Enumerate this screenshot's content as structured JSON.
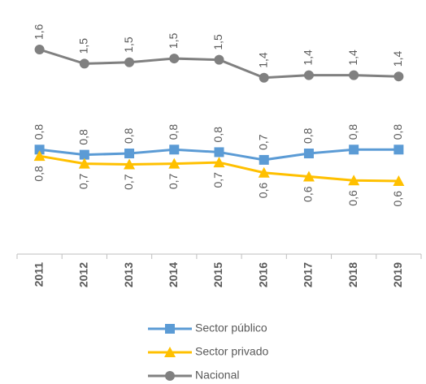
{
  "chart_data": {
    "type": "line",
    "categories": [
      "2011",
      "2012",
      "2013",
      "2014",
      "2015",
      "2016",
      "2017",
      "2018",
      "2019"
    ],
    "series": [
      {
        "name": "Sector público",
        "color": "#5b9bd5",
        "marker": "square",
        "values": [
          0.8,
          0.76,
          0.77,
          0.8,
          0.78,
          0.72,
          0.77,
          0.8,
          0.8
        ],
        "value_labels": [
          "0,8",
          "0,8",
          "0,8",
          "0,8",
          "0,8",
          "0,7",
          "0,8",
          "0,8",
          "0,8"
        ]
      },
      {
        "name": "Sector privado",
        "color": "#ffc000",
        "marker": "triangle",
        "values": [
          0.75,
          0.69,
          0.685,
          0.69,
          0.7,
          0.62,
          0.59,
          0.56,
          0.555
        ],
        "value_labels": [
          "0,8",
          "0,7",
          "0,7",
          "0,7",
          "0,7",
          "0,6",
          "0,6",
          "0,6",
          "0,6"
        ]
      },
      {
        "name": "Nacional",
        "color": "#808080",
        "marker": "circle",
        "values": [
          1.58,
          1.47,
          1.48,
          1.51,
          1.5,
          1.36,
          1.38,
          1.38,
          1.37
        ],
        "value_labels": [
          "1,6",
          "1,5",
          "1,5",
          "1,5",
          "1,5",
          "1,4",
          "1,4",
          "1,4",
          "1,4"
        ]
      }
    ]
  }
}
